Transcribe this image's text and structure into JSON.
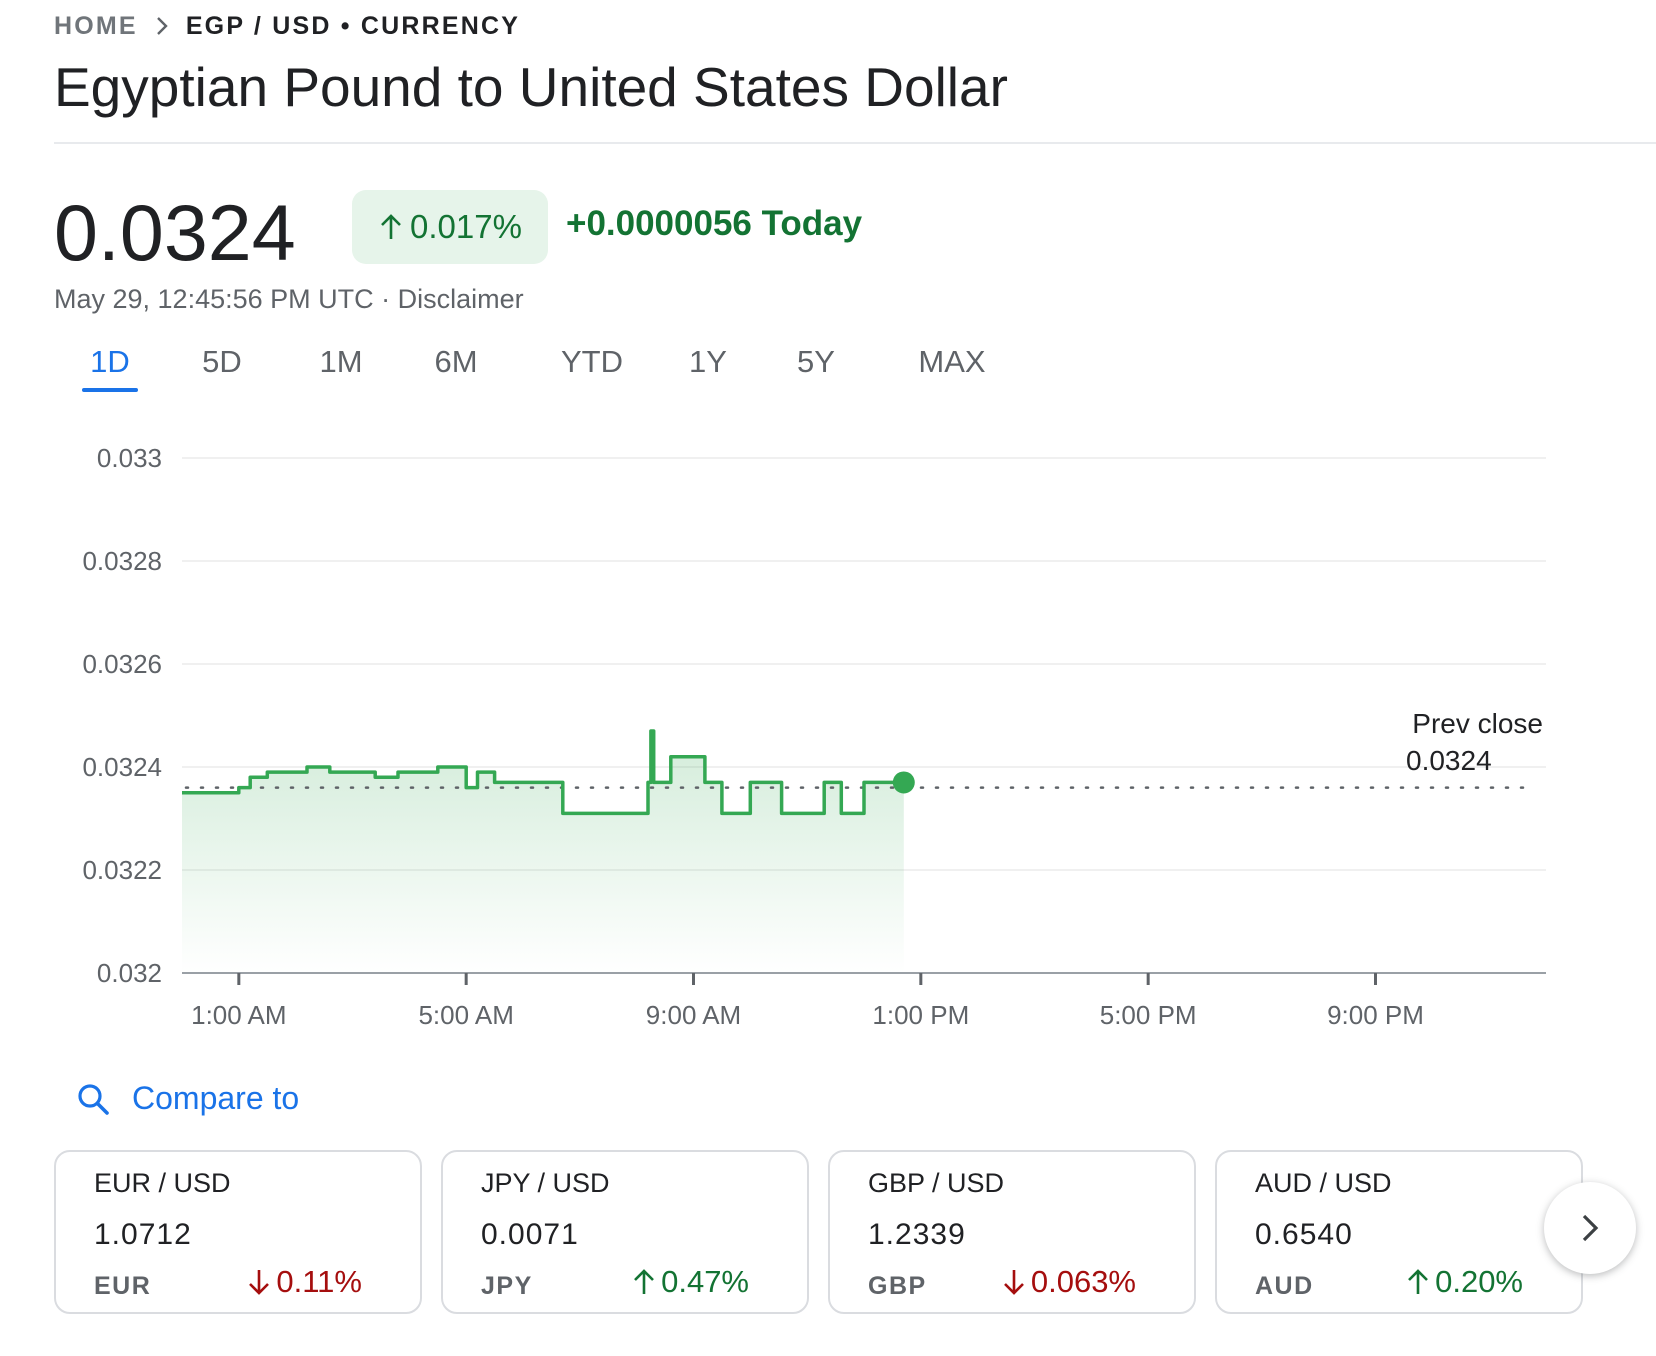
{
  "breadcrumb": {
    "home": "HOME",
    "current": "EGP / USD • CURRENCY"
  },
  "title": "Egyptian Pound to United States Dollar",
  "quote": {
    "price": "0.0324",
    "change_percent": "0.017%",
    "change_today": "+0.0000056 Today",
    "timestamp": "May 29, 12:45:56 PM UTC · ",
    "disclaimer": "Disclaimer"
  },
  "range_tabs": [
    "1D",
    "5D",
    "1M",
    "6M",
    "YTD",
    "1Y",
    "5Y",
    "MAX"
  ],
  "active_tab": "1D",
  "colors": {
    "accent": "#1a73e8",
    "up": "#137333",
    "down": "#a50e0e",
    "line": "#34a853"
  },
  "chart_data": {
    "type": "line",
    "title": "",
    "xlabel": "",
    "ylabel": "",
    "ylim": [
      0.032,
      0.033
    ],
    "xlim_hours": [
      0,
      24
    ],
    "y_ticks": [
      "0.033",
      "0.0328",
      "0.0326",
      "0.0324",
      "0.0322",
      "0.032"
    ],
    "x_ticks": [
      "1:00 AM",
      "5:00 AM",
      "9:00 AM",
      "1:00 PM",
      "5:00 PM",
      "9:00 PM"
    ],
    "x_tick_hours": [
      1,
      5,
      9,
      13,
      17,
      21
    ],
    "prev_close_label": "Prev close",
    "prev_close_value": "0.0324",
    "prev_close": 0.03236,
    "series": [
      {
        "x_hours": [
          0,
          0.4,
          0.8,
          1.0,
          1.2,
          1.5,
          1.9,
          2.2,
          2.6,
          3.0,
          3.4,
          3.8,
          4.2,
          4.5,
          4.9,
          5.0,
          5.2,
          5.5,
          5.7,
          5.8,
          6.0,
          6.3,
          6.6,
          6.7,
          6.8,
          7.5,
          8.1,
          8.2,
          8.25,
          8.3,
          8.4,
          8.6,
          8.7,
          8.9,
          9.2,
          9.4,
          9.5,
          9.8,
          10.0,
          10.3,
          10.5,
          10.55,
          10.6,
          11.2,
          11.3,
          11.5,
          11.6,
          12.0,
          12.3,
          12.5,
          12.7
        ],
        "y": [
          0.03235,
          0.03235,
          0.03235,
          0.03236,
          0.03238,
          0.03239,
          0.03239,
          0.0324,
          0.03239,
          0.03239,
          0.03238,
          0.03239,
          0.03239,
          0.0324,
          0.0324,
          0.03236,
          0.03239,
          0.03237,
          0.03237,
          0.03237,
          0.03237,
          0.03237,
          0.03237,
          0.03231,
          0.03231,
          0.03231,
          0.03231,
          0.03237,
          0.03247,
          0.03237,
          0.03237,
          0.03242,
          0.03242,
          0.03242,
          0.03237,
          0.03237,
          0.03231,
          0.03231,
          0.03237,
          0.03237,
          0.03237,
          0.03231,
          0.03231,
          0.03231,
          0.03237,
          0.03237,
          0.03231,
          0.03237,
          0.03237,
          0.03237,
          0.03237
        ]
      }
    ]
  },
  "compare": {
    "label": "Compare to"
  },
  "cards": [
    {
      "pair": "EUR / USD",
      "value": "1.0712",
      "code": "EUR",
      "change": "0.11%",
      "direction": "down"
    },
    {
      "pair": "JPY / USD",
      "value": "0.0071",
      "code": "JPY",
      "change": "0.47%",
      "direction": "up"
    },
    {
      "pair": "GBP / USD",
      "value": "1.2339",
      "code": "GBP",
      "change": "0.063%",
      "direction": "down"
    },
    {
      "pair": "AUD / USD",
      "value": "0.6540",
      "code": "AUD",
      "change": "0.20%",
      "direction": "up"
    }
  ],
  "icons": {
    "breadcrumb_sep": "chevron-right-icon",
    "compare": "search-icon",
    "next": "chevron-right-icon"
  }
}
